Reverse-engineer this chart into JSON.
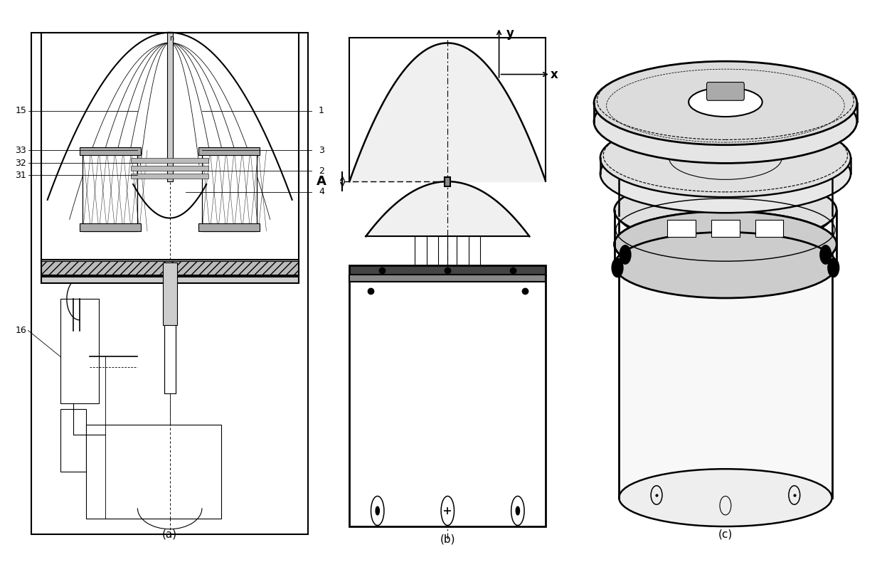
{
  "bg_color": "#ffffff",
  "line_color": "#000000",
  "fig_width": 12.4,
  "fig_height": 7.9,
  "caption_a": "(a)",
  "caption_b": "(b)",
  "caption_c": "(c)",
  "axis_y": "y",
  "axis_x": "x",
  "label_A": "A",
  "lw_main": 1.5,
  "lw_thin": 0.8,
  "lw_thick": 2.5
}
